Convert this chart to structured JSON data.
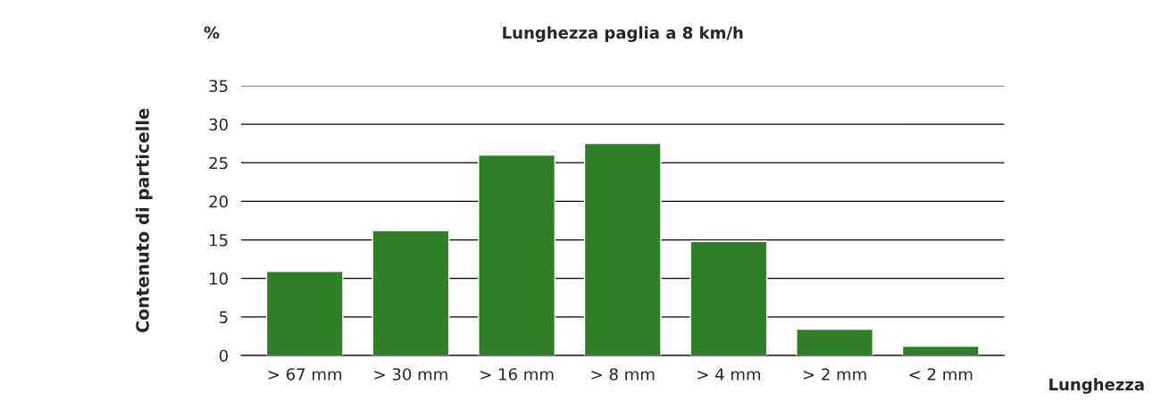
{
  "chart_data": {
    "type": "bar",
    "title": "Lunghezza paglia a 8 km/h",
    "categories": [
      "> 67 mm",
      "> 30 mm",
      "> 16 mm",
      "> 8 mm",
      "> 4 mm",
      "> 2 mm",
      "< 2 mm"
    ],
    "values": [
      10.9,
      16.2,
      26.0,
      27.5,
      14.8,
      3.4,
      1.2
    ],
    "color": "#2f7f27",
    "ylabel": "Contenuto di particelle",
    "xlabel": "Lunghezza",
    "annotations": [
      "%"
    ],
    "ylim": [
      0,
      35
    ],
    "yticks": [
      0,
      5,
      10,
      15,
      20,
      25,
      30,
      35
    ],
    "grid": "y"
  }
}
